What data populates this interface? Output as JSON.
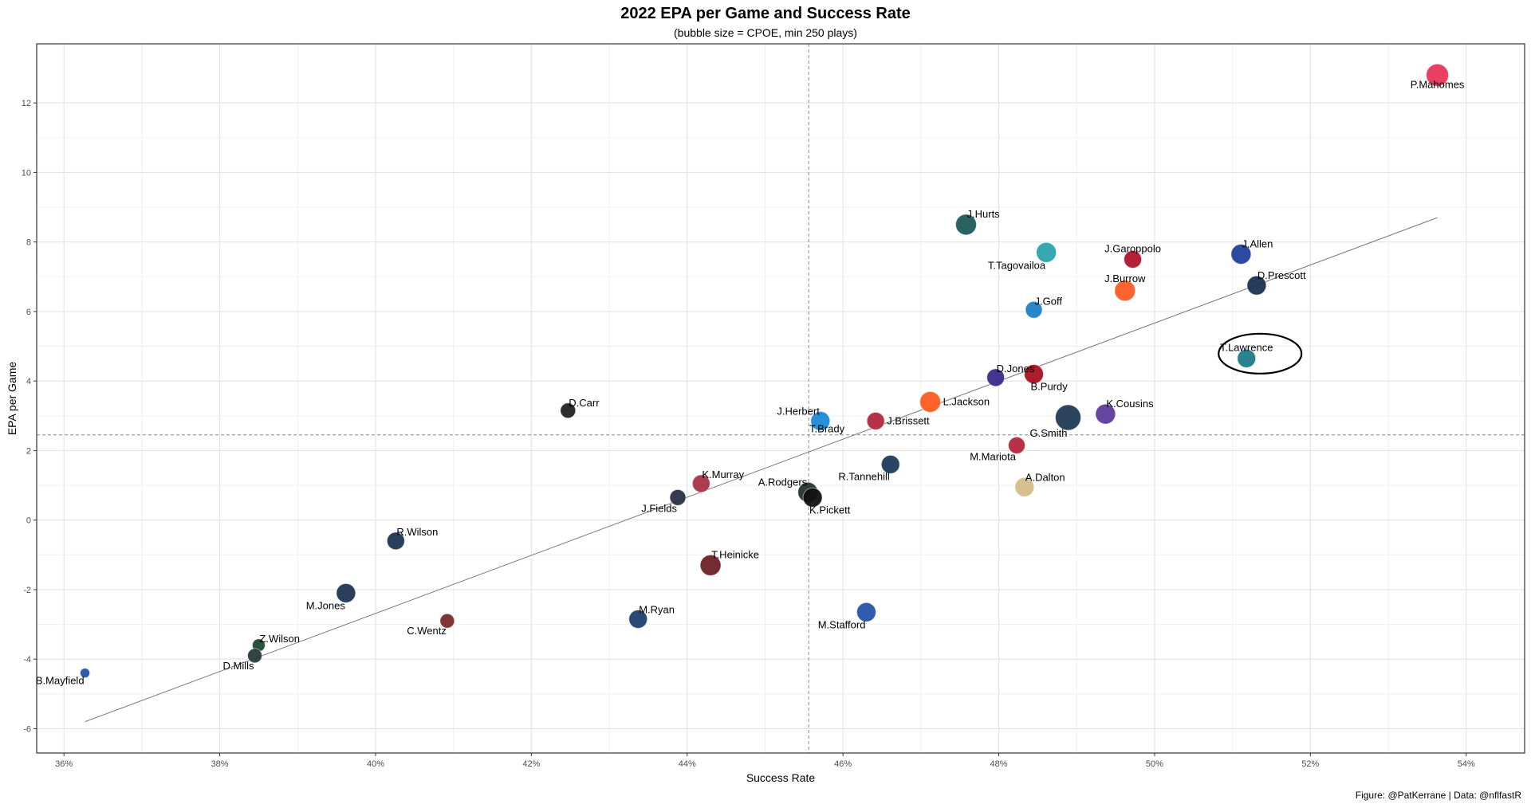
{
  "chart_data": {
    "type": "scatter",
    "title": "2022 EPA per Game and Success Rate",
    "subtitle": "(bubble size = CPOE, min 250 plays)",
    "xlabel": "Success Rate",
    "ylabel": "EPA per Game",
    "caption": "Figure: @PatKerrane | Data: @nflfastR",
    "xlim": [
      0.3565,
      0.5475
    ],
    "ylim": [
      -6.7,
      13.7
    ],
    "x_ticks": [
      0.36,
      0.38,
      0.4,
      0.42,
      0.44,
      0.46,
      0.48,
      0.5,
      0.52,
      0.54
    ],
    "x_tick_labels": [
      "36%",
      "38%",
      "40%",
      "42%",
      "44%",
      "46%",
      "48%",
      "50%",
      "52%",
      "54%"
    ],
    "y_ticks": [
      -6,
      -4,
      -2,
      0,
      2,
      4,
      6,
      8,
      10,
      12
    ],
    "y_tick_labels": [
      "-6",
      "-4",
      "-2",
      "0",
      "2",
      "4",
      "6",
      "8",
      "10",
      "12"
    ],
    "grid": true,
    "reference_lines": {
      "x": 0.4556,
      "y": 2.45
    },
    "trend_line": {
      "x": [
        0.3627,
        0.5363
      ],
      "y": [
        -5.8,
        8.7
      ]
    },
    "highlight": "T.Lawrence",
    "points": [
      {
        "label": "P.Mahomes",
        "x": 0.5363,
        "y": 12.8,
        "size": 14,
        "color": "#e8365a",
        "label_pos": "below"
      },
      {
        "label": "J.Hurts",
        "x": 0.4758,
        "y": 8.5,
        "size": 13,
        "color": "#1f5a5a",
        "label_pos": "above-right"
      },
      {
        "label": "T.Tagovailoa",
        "x": 0.4861,
        "y": 7.7,
        "size": 12.5,
        "color": "#2aa3ae",
        "label_pos": "below-left"
      },
      {
        "label": "J.Garoppolo",
        "x": 0.4972,
        "y": 7.5,
        "size": 11,
        "color": "#b0142d",
        "label_pos": "above"
      },
      {
        "label": "J.Allen",
        "x": 0.5111,
        "y": 7.65,
        "size": 12.5,
        "color": "#21409a",
        "label_pos": "above-right"
      },
      {
        "label": "D.Prescott",
        "x": 0.5131,
        "y": 6.75,
        "size": 12,
        "color": "#1b3152",
        "label_pos": "above-right"
      },
      {
        "label": "J.Burrow",
        "x": 0.4962,
        "y": 6.6,
        "size": 13,
        "color": "#fb5d22",
        "label_pos": "above"
      },
      {
        "label": "J.Goff",
        "x": 0.4845,
        "y": 6.05,
        "size": 10.5,
        "color": "#1e7fc4",
        "label_pos": "above-right"
      },
      {
        "label": "T.Lawrence",
        "x": 0.5118,
        "y": 4.65,
        "size": 11.5,
        "color": "#1f7c86",
        "label_pos": "above"
      },
      {
        "label": "D.Jones",
        "x": 0.4796,
        "y": 4.1,
        "size": 11,
        "color": "#3a2a8a",
        "label_pos": "above-right"
      },
      {
        "label": "B.Purdy",
        "x": 0.4845,
        "y": 4.2,
        "size": 12,
        "color": "#a8101f",
        "label_pos": "below-right"
      },
      {
        "label": "L.Jackson",
        "x": 0.4712,
        "y": 3.4,
        "size": 13,
        "color": "#fb5d22",
        "label_pos": "right"
      },
      {
        "label": "G.Smith",
        "x": 0.4889,
        "y": 2.95,
        "size": 16,
        "color": "#223a55",
        "label_pos": "below-left"
      },
      {
        "label": "K.Cousins",
        "x": 0.4937,
        "y": 3.05,
        "size": 12.5,
        "color": "#5c3c9c",
        "label_pos": "above-right"
      },
      {
        "label": "D.Carr",
        "x": 0.4247,
        "y": 3.15,
        "size": 9.5,
        "color": "#222222",
        "label_pos": "above-right"
      },
      {
        "label": "J.Herbert",
        "x": 0.4571,
        "y": 2.85,
        "size": 12,
        "color": "#1e8ad6",
        "label_pos": "above-left"
      },
      {
        "label": "J.Brissett",
        "x": 0.4642,
        "y": 2.85,
        "size": 11,
        "color": "#b3273e",
        "label_pos": "right"
      },
      {
        "label": "T.Brady",
        "x": 0.4561,
        "y": 2.8,
        "size": 0,
        "color": "#444444",
        "label_pos": "below-right"
      },
      {
        "label": "M.Mariota",
        "x": 0.4823,
        "y": 2.15,
        "size": 10.5,
        "color": "#b3273e",
        "label_pos": "below-left"
      },
      {
        "label": "R.Tannehill",
        "x": 0.4661,
        "y": 1.6,
        "size": 11.5,
        "color": "#1f3a5c",
        "label_pos": "below-left"
      },
      {
        "label": "A.Dalton",
        "x": 0.4833,
        "y": 0.95,
        "size": 12,
        "color": "#d4bd8c",
        "label_pos": "above-right"
      },
      {
        "label": "K.Murray",
        "x": 0.4418,
        "y": 1.05,
        "size": 11,
        "color": "#a83245",
        "label_pos": "above-right"
      },
      {
        "label": "A.Rodgers",
        "x": 0.4555,
        "y": 0.8,
        "size": 12.5,
        "color": "#23332b",
        "label_pos": "above-left"
      },
      {
        "label": "K.Pickett",
        "x": 0.4561,
        "y": 0.65,
        "size": 12,
        "color": "#111111",
        "label_pos": "below-right"
      },
      {
        "label": "J.Fields",
        "x": 0.4388,
        "y": 0.65,
        "size": 10,
        "color": "#2a3244",
        "label_pos": "below-left"
      },
      {
        "label": "R.Wilson",
        "x": 0.4026,
        "y": -0.6,
        "size": 11,
        "color": "#1f3553",
        "label_pos": "above-right"
      },
      {
        "label": "T.Heinicke",
        "x": 0.443,
        "y": -1.3,
        "size": 13,
        "color": "#6b2126",
        "label_pos": "above-right"
      },
      {
        "label": "M.Jones",
        "x": 0.3962,
        "y": -2.1,
        "size": 12,
        "color": "#1f3553",
        "label_pos": "below-left"
      },
      {
        "label": "M.Ryan",
        "x": 0.4337,
        "y": -2.85,
        "size": 11.5,
        "color": "#1f3f6e",
        "label_pos": "above-right"
      },
      {
        "label": "M.Stafford",
        "x": 0.463,
        "y": -2.65,
        "size": 12,
        "color": "#2553a8",
        "label_pos": "below-left"
      },
      {
        "label": "C.Wentz",
        "x": 0.4092,
        "y": -2.9,
        "size": 9,
        "color": "#7a2b2b",
        "label_pos": "below-left"
      },
      {
        "label": "Z.Wilson",
        "x": 0.385,
        "y": -3.6,
        "size": 8,
        "color": "#1f4a35",
        "label_pos": "above-right"
      },
      {
        "label": "D.Mills",
        "x": 0.3845,
        "y": -3.9,
        "size": 9,
        "color": "#273b3a",
        "label_pos": "below-left"
      },
      {
        "label": "B.Mayfield",
        "x": 0.3627,
        "y": -4.4,
        "size": 6,
        "color": "#2553a8",
        "label_pos": "below-left"
      }
    ]
  }
}
